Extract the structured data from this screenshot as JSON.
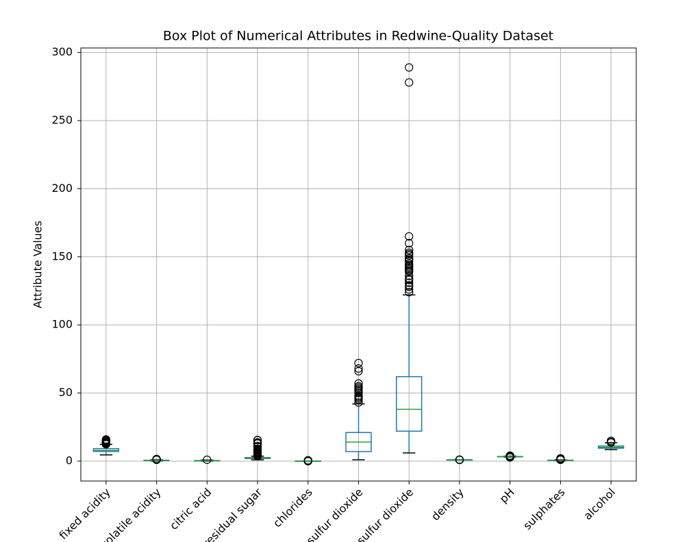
{
  "chart_data": {
    "type": "box",
    "title": "Box Plot of Numerical Attributes in Redwine-Quality Dataset",
    "y_label": "Attribute Values",
    "categories": [
      "fixed acidity",
      "volatile acidity",
      "citric acid",
      "residual sugar",
      "chlorides",
      "free sulfur dioxide",
      "total sulfur dioxide",
      "density",
      "pH",
      "sulphates",
      "alcohol"
    ],
    "box_color": "#1f77b4",
    "median_color": "#2ca02c",
    "flier_color": "#000000",
    "boxes": [
      {
        "whislo": 4.6,
        "q1": 7.1,
        "med": 7.9,
        "q3": 9.2,
        "whishi": 12.3,
        "fliers": [
          12.4,
          12.5,
          12.6,
          12.7,
          12.8,
          12.9,
          13.0,
          13.2,
          13.3,
          13.4,
          13.5,
          13.7,
          13.8,
          14.0,
          14.3,
          15.0,
          15.5,
          15.6,
          15.9
        ]
      },
      {
        "whislo": 0.12,
        "q1": 0.39,
        "med": 0.52,
        "q3": 0.64,
        "whishi": 1.01,
        "fliers": [
          1.02,
          1.04,
          1.07,
          1.09,
          1.13,
          1.18,
          1.24,
          1.33,
          1.58
        ]
      },
      {
        "whislo": 0,
        "q1": 0.09,
        "med": 0.26,
        "q3": 0.42,
        "whishi": 0.79,
        "fliers": [
          1.0
        ]
      },
      {
        "whislo": 0.9,
        "q1": 1.9,
        "med": 2.2,
        "q3": 2.6,
        "whishi": 3.65,
        "fliers": [
          3.7,
          3.8,
          4.0,
          4.3,
          4.6,
          5.1,
          5.5,
          6.1,
          6.7,
          7.3,
          7.9,
          8.3,
          8.8,
          9.0,
          10.7,
          11.0,
          12.9,
          13.4,
          13.8,
          15.4,
          15.5
        ]
      },
      {
        "whislo": 0.041,
        "q1": 0.07,
        "med": 0.079,
        "q3": 0.09,
        "whishi": 0.119,
        "fliers": [
          0.012,
          0.034,
          0.12,
          0.15,
          0.2,
          0.25,
          0.3,
          0.34,
          0.36,
          0.41,
          0.42,
          0.46,
          0.61
        ]
      },
      {
        "whislo": 1,
        "q1": 7,
        "med": 14,
        "q3": 21,
        "whishi": 42,
        "fliers": [
          43,
          45,
          46,
          47,
          48,
          50,
          51,
          52,
          53,
          54,
          55,
          57,
          66,
          68,
          72
        ]
      },
      {
        "whislo": 6,
        "q1": 22,
        "med": 38,
        "q3": 62,
        "whishi": 122,
        "fliers": [
          124,
          126,
          128,
          129,
          131,
          133,
          134,
          136,
          139,
          140,
          141,
          142,
          143,
          144,
          145,
          147,
          148,
          149,
          151,
          152,
          153,
          155,
          160,
          165,
          278,
          289
        ]
      },
      {
        "whislo": 0.9923,
        "q1": 0.9956,
        "med": 0.9968,
        "q3": 0.9978,
        "whishi": 1.001,
        "fliers": [
          0.99,
          0.9901,
          0.9907,
          0.9912,
          1.0014,
          1.0022,
          1.0032,
          1.0037
        ]
      },
      {
        "whislo": 2.94,
        "q1": 3.21,
        "med": 3.31,
        "q3": 3.4,
        "whishi": 3.68,
        "fliers": [
          2.74,
          2.86,
          2.87,
          2.88,
          2.89,
          2.9,
          2.92,
          3.69,
          3.7,
          3.71,
          3.72,
          3.74,
          3.78,
          3.85,
          3.9,
          4.01
        ]
      },
      {
        "whislo": 0.33,
        "q1": 0.55,
        "med": 0.62,
        "q3": 0.73,
        "whishi": 1.0,
        "fliers": [
          1.02,
          1.05,
          1.08,
          1.1,
          1.14,
          1.17,
          1.2,
          1.26,
          1.33,
          1.36,
          1.59,
          1.62,
          1.95,
          1.98,
          2.0
        ]
      },
      {
        "whislo": 8.4,
        "q1": 9.5,
        "med": 10.2,
        "q3": 11.1,
        "whishi": 13.5,
        "fliers": [
          13.6,
          14.0,
          14.9
        ]
      }
    ],
    "ylim": [
      -14.6,
      303.3
    ],
    "yticks": [
      0,
      50,
      100,
      150,
      200,
      250,
      300
    ],
    "grid": true
  }
}
